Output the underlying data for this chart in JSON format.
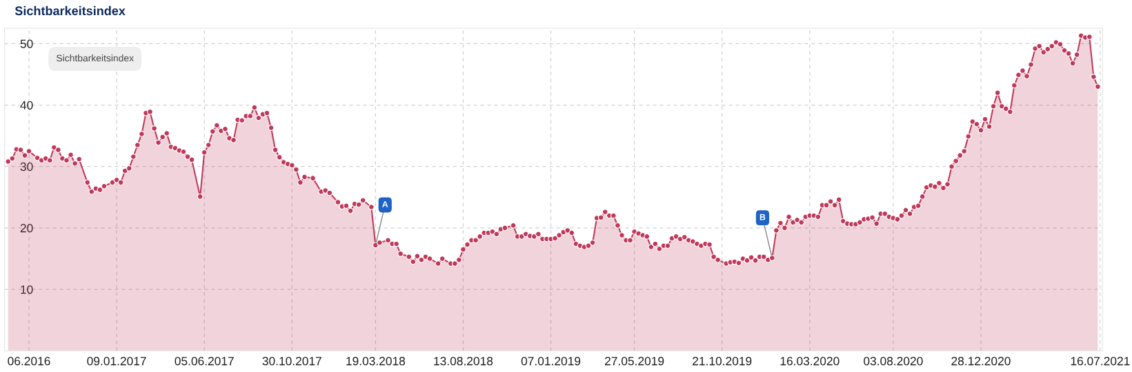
{
  "chart_data": {
    "type": "area",
    "title": "Sichtbarkeitsindex",
    "annotations": [
      "Sichtbarkeitsindex",
      {
        "text": "A",
        "x": "2018-03-19",
        "y": 17.2
      },
      {
        "text": "B",
        "x": "2020-01-13",
        "y": 15.1
      }
    ],
    "x": [
      "2016-07-11",
      "2016-07-18",
      "2016-07-25",
      "2016-08-01",
      "2016-08-08",
      "2016-08-15",
      "2016-08-29",
      "2016-09-05",
      "2016-09-12",
      "2016-09-19",
      "2016-09-26",
      "2016-10-03",
      "2016-10-10",
      "2016-10-17",
      "2016-10-24",
      "2016-10-31",
      "2016-11-07",
      "2016-11-21",
      "2016-11-28",
      "2016-12-05",
      "2016-12-12",
      "2016-12-19",
      "2017-01-02",
      "2017-01-09",
      "2017-01-16",
      "2017-01-23",
      "2017-01-30",
      "2017-02-06",
      "2017-02-13",
      "2017-02-20",
      "2017-02-27",
      "2017-03-06",
      "2017-03-13",
      "2017-03-20",
      "2017-03-27",
      "2017-04-03",
      "2017-04-10",
      "2017-04-17",
      "2017-04-24",
      "2017-05-01",
      "2017-05-08",
      "2017-05-15",
      "2017-05-29",
      "2017-06-05",
      "2017-06-12",
      "2017-06-19",
      "2017-06-26",
      "2017-07-03",
      "2017-07-10",
      "2017-07-17",
      "2017-07-24",
      "2017-07-31",
      "2017-08-07",
      "2017-08-14",
      "2017-08-21",
      "2017-08-28",
      "2017-09-04",
      "2017-09-11",
      "2017-09-18",
      "2017-09-25",
      "2017-10-02",
      "2017-10-09",
      "2017-10-16",
      "2017-10-23",
      "2017-10-30",
      "2017-11-06",
      "2017-11-13",
      "2017-11-20",
      "2017-12-04",
      "2017-12-18",
      "2017-12-25",
      "2018-01-01",
      "2018-01-15",
      "2018-01-22",
      "2018-01-29",
      "2018-02-05",
      "2018-02-12",
      "2018-02-19",
      "2018-02-26",
      "2018-03-12",
      "2018-03-19",
      "2018-03-26",
      "2018-04-09",
      "2018-04-16",
      "2018-04-23",
      "2018-04-30",
      "2018-05-14",
      "2018-05-21",
      "2018-05-28",
      "2018-06-04",
      "2018-06-11",
      "2018-06-18",
      "2018-07-02",
      "2018-07-09",
      "2018-07-23",
      "2018-07-30",
      "2018-08-06",
      "2018-08-13",
      "2018-08-20",
      "2018-08-27",
      "2018-09-03",
      "2018-09-10",
      "2018-09-17",
      "2018-09-24",
      "2018-10-01",
      "2018-10-08",
      "2018-10-15",
      "2018-10-22",
      "2018-11-05",
      "2018-11-12",
      "2018-11-19",
      "2018-11-26",
      "2018-12-03",
      "2018-12-10",
      "2018-12-17",
      "2018-12-24",
      "2018-12-31",
      "2019-01-07",
      "2019-01-14",
      "2019-01-21",
      "2019-01-28",
      "2019-02-04",
      "2019-02-11",
      "2019-02-18",
      "2019-02-25",
      "2019-03-04",
      "2019-03-11",
      "2019-03-18",
      "2019-03-25",
      "2019-04-01",
      "2019-04-08",
      "2019-04-15",
      "2019-04-22",
      "2019-04-29",
      "2019-05-06",
      "2019-05-13",
      "2019-05-20",
      "2019-05-27",
      "2019-06-03",
      "2019-06-10",
      "2019-06-17",
      "2019-06-24",
      "2019-07-01",
      "2019-07-08",
      "2019-07-15",
      "2019-07-22",
      "2019-07-29",
      "2019-08-05",
      "2019-08-12",
      "2019-08-19",
      "2019-08-26",
      "2019-09-02",
      "2019-09-09",
      "2019-09-16",
      "2019-09-23",
      "2019-09-30",
      "2019-10-07",
      "2019-10-14",
      "2019-10-28",
      "2019-11-04",
      "2019-11-11",
      "2019-11-18",
      "2019-11-25",
      "2019-12-02",
      "2019-12-09",
      "2019-12-16",
      "2019-12-23",
      "2019-12-30",
      "2020-01-06",
      "2020-01-13",
      "2020-01-20",
      "2020-01-27",
      "2020-02-03",
      "2020-02-10",
      "2020-02-17",
      "2020-02-24",
      "2020-03-02",
      "2020-03-09",
      "2020-03-16",
      "2020-03-23",
      "2020-03-30",
      "2020-04-06",
      "2020-04-13",
      "2020-04-20",
      "2020-04-27",
      "2020-05-04",
      "2020-05-11",
      "2020-05-18",
      "2020-05-25",
      "2020-06-01",
      "2020-06-08",
      "2020-06-15",
      "2020-06-22",
      "2020-06-29",
      "2020-07-06",
      "2020-07-13",
      "2020-07-20",
      "2020-07-27",
      "2020-08-03",
      "2020-08-10",
      "2020-08-17",
      "2020-08-24",
      "2020-08-31",
      "2020-09-07",
      "2020-09-14",
      "2020-09-21",
      "2020-09-28",
      "2020-10-05",
      "2020-10-12",
      "2020-10-19",
      "2020-10-26",
      "2020-11-02",
      "2020-11-09",
      "2020-11-16",
      "2020-11-23",
      "2020-11-30",
      "2020-12-07",
      "2020-12-14",
      "2020-12-21",
      "2020-12-28",
      "2021-01-04",
      "2021-01-11",
      "2021-01-18",
      "2021-01-25",
      "2021-02-01",
      "2021-02-08",
      "2021-02-15",
      "2021-02-22",
      "2021-03-01",
      "2021-03-08",
      "2021-03-15",
      "2021-03-22",
      "2021-03-29",
      "2021-04-05",
      "2021-04-12",
      "2021-04-19",
      "2021-04-26",
      "2021-05-03",
      "2021-05-10",
      "2021-05-17",
      "2021-05-24",
      "2021-05-31",
      "2021-06-07",
      "2021-06-14",
      "2021-06-21",
      "2021-06-28",
      "2021-07-05",
      "2021-07-12"
    ],
    "series": [
      {
        "color": "#c0395b",
        "values": [
          30.8,
          31.3,
          32.8,
          32.7,
          31.8,
          32.5,
          31.4,
          31.0,
          31.3,
          31.0,
          33.1,
          32.7,
          31.3,
          31.0,
          31.9,
          30.5,
          31.2,
          27.4,
          25.9,
          26.4,
          26.2,
          26.8,
          27.4,
          27.8,
          27.4,
          29.3,
          29.7,
          31.6,
          33.5,
          35.3,
          38.7,
          38.9,
          36.2,
          33.9,
          34.8,
          35.4,
          33.2,
          33.0,
          32.6,
          32.4,
          31.6,
          31.1,
          25.1,
          32.3,
          33.5,
          35.7,
          36.7,
          35.8,
          36.1,
          34.6,
          34.3,
          37.6,
          37.5,
          38.2,
          38.2,
          39.6,
          37.9,
          38.5,
          38.7,
          36.3,
          32.7,
          31.5,
          30.7,
          30.4,
          30.2,
          29.5,
          27.4,
          28.3,
          28.1,
          25.9,
          26.1,
          25.7,
          24.2,
          23.5,
          23.6,
          22.8,
          23.9,
          23.8,
          24.5,
          23.4,
          17.2,
          17.6,
          18.0,
          17.4,
          17.4,
          15.8,
          15.3,
          14.5,
          15.4,
          14.8,
          15.3,
          15.0,
          14.2,
          15.0,
          14.2,
          14.2,
          14.8,
          16.5,
          17.3,
          18.0,
          18.0,
          18.6,
          19.2,
          19.2,
          19.4,
          19.0,
          19.8,
          20.0,
          20.4,
          18.6,
          18.6,
          19.0,
          18.7,
          18.6,
          19.0,
          18.2,
          18.2,
          18.2,
          18.3,
          18.8,
          19.3,
          19.6,
          19.2,
          17.4,
          17.1,
          16.9,
          17.1,
          17.6,
          21.6,
          21.7,
          22.6,
          22.0,
          22.0,
          20.4,
          18.8,
          18.0,
          18.0,
          19.4,
          19.1,
          18.8,
          18.6,
          16.9,
          17.4,
          16.6,
          17.1,
          17.1,
          18.3,
          18.6,
          18.2,
          18.5,
          18.0,
          17.8,
          17.4,
          17.1,
          17.4,
          17.3,
          15.3,
          14.8,
          14.2,
          14.4,
          14.5,
          14.3,
          15.0,
          14.7,
          15.2,
          14.7,
          15.3,
          15.3,
          14.8,
          15.1,
          19.6,
          20.8,
          20.0,
          21.8,
          20.9,
          21.3,
          20.9,
          21.8,
          22.0,
          22.0,
          21.8,
          23.7,
          23.7,
          24.3,
          23.7,
          24.6,
          21.1,
          20.7,
          20.6,
          20.6,
          20.9,
          21.4,
          21.5,
          21.7,
          20.7,
          22.3,
          22.3,
          21.8,
          21.6,
          21.4,
          22.0,
          22.9,
          22.3,
          23.4,
          23.6,
          25.1,
          26.6,
          26.9,
          26.7,
          27.3,
          26.5,
          27.1,
          30.0,
          30.9,
          31.8,
          32.5,
          34.9,
          37.3,
          36.9,
          35.9,
          37.7,
          36.5,
          39.8,
          42.0,
          39.8,
          39.4,
          38.9,
          43.2,
          44.9,
          45.6,
          44.7,
          46.6,
          49.2,
          49.6,
          48.6,
          49.1,
          49.6,
          50.2,
          49.9,
          48.9,
          48.4,
          46.8,
          48.2,
          51.3,
          51.0,
          51.1,
          44.6,
          43.0
        ]
      }
    ],
    "xlim": [
      "2016-07-05",
      "2021-07-20"
    ],
    "xticks": [
      {
        "value": "2016-08-15",
        "label": "06.2016"
      },
      {
        "value": "2017-01-09",
        "label": "09.01.2017"
      },
      {
        "value": "2017-06-05",
        "label": "05.06.2017"
      },
      {
        "value": "2017-10-30",
        "label": "30.10.2017"
      },
      {
        "value": "2018-03-19",
        "label": "19.03.2018"
      },
      {
        "value": "2018-08-13",
        "label": "13.08.2018"
      },
      {
        "value": "2019-01-07",
        "label": "07.01.2019"
      },
      {
        "value": "2019-05-27",
        "label": "27.05.2019"
      },
      {
        "value": "2019-10-21",
        "label": "21.10.2019"
      },
      {
        "value": "2020-03-16",
        "label": "16.03.2020"
      },
      {
        "value": "2020-08-03",
        "label": "03.08.2020"
      },
      {
        "value": "2020-12-28",
        "label": "28.12.2020"
      },
      {
        "value": "2021-07-16",
        "label": "16.07.2021"
      }
    ],
    "ylim": [
      0,
      52.5
    ],
    "yticks": [
      10,
      20,
      30,
      40,
      50
    ],
    "grid": true,
    "marker": "circle",
    "line_style": "solid"
  }
}
